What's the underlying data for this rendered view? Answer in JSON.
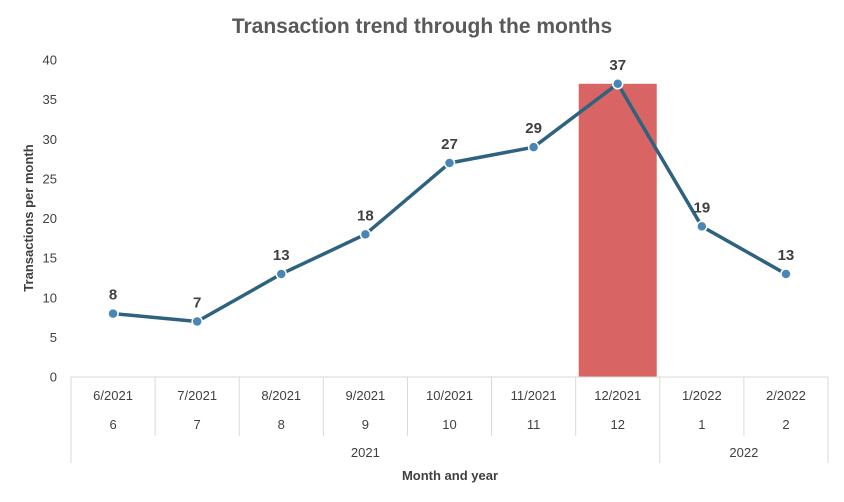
{
  "chart_data": {
    "type": "line",
    "title": "Transaction trend through the months",
    "xlabel": "Month and year",
    "ylabel": "Transactions per month",
    "ylim": [
      0,
      40
    ],
    "yticks": [
      0,
      5,
      10,
      15,
      20,
      25,
      30,
      35,
      40
    ],
    "categories": [
      "6/2021",
      "7/2021",
      "8/2021",
      "9/2021",
      "10/2021",
      "11/2021",
      "12/2021",
      "1/2022",
      "2/2022"
    ],
    "month_labels": [
      "6",
      "7",
      "8",
      "9",
      "10",
      "11",
      "12",
      "1",
      "2"
    ],
    "year_groups": [
      {
        "label": "2021",
        "count": 7
      },
      {
        "label": "2022",
        "count": 2
      }
    ],
    "values": [
      8,
      7,
      13,
      18,
      27,
      29,
      37,
      19,
      13
    ],
    "highlight": {
      "category": "12/2021",
      "value": 37,
      "color": "#d96464"
    },
    "line_color": "#2e637f",
    "marker_color": "#4a86b5",
    "grid": false
  }
}
